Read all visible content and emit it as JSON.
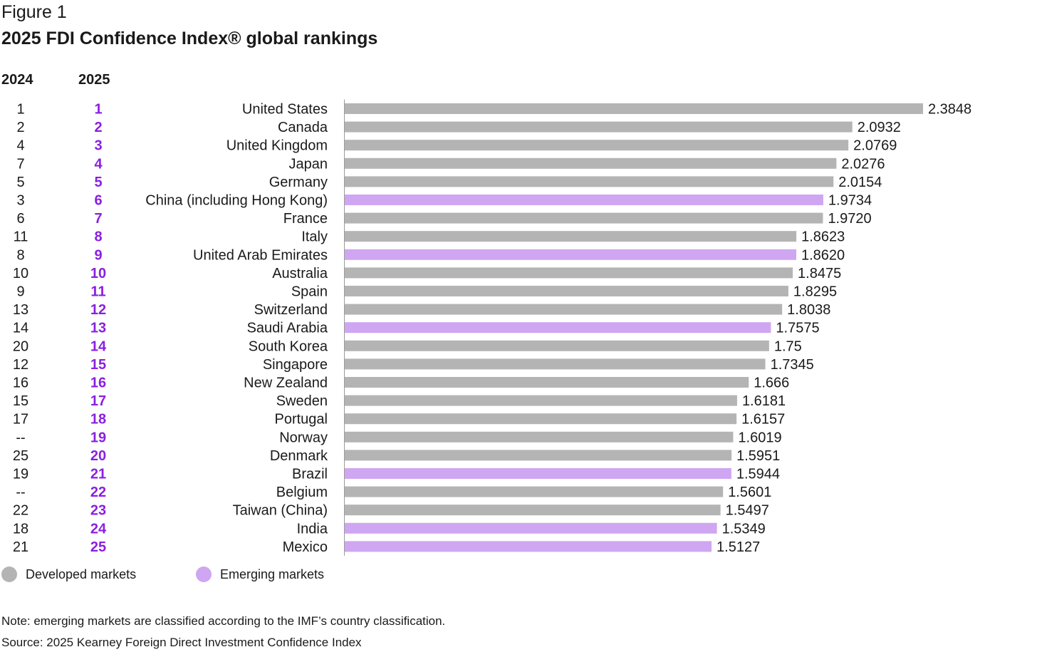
{
  "header": {
    "figure_label": "Figure 1",
    "title": "2025 FDI Confidence Index® global rankings",
    "col_2024": "2024",
    "col_2025": "2025"
  },
  "legend": {
    "developed": "Developed markets",
    "emerging": "Emerging markets"
  },
  "colors": {
    "developed": "#b4b4b4",
    "emerging": "#cfa6f2",
    "rank_2025": "#8a1fe0",
    "text": "#1a1a1a"
  },
  "footer": {
    "note": "Note: emerging markets are classified according to the IMF’s country classification.",
    "source": "Source: 2025 Kearney Foreign Direct Investment Confidence Index"
  },
  "chart_data": {
    "type": "bar",
    "orientation": "horizontal",
    "title": "2025 FDI Confidence Index® global rankings",
    "xlim": [
      0,
      2.3848
    ],
    "categories": [
      "United States",
      "Canada",
      "United Kingdom",
      "Japan",
      "Germany",
      "China (including Hong Kong)",
      "France",
      "Italy",
      "United Arab Emirates",
      "Australia",
      "Spain",
      "Switzerland",
      "Saudi Arabia",
      "South Korea",
      "Singapore",
      "New Zealand",
      "Sweden",
      "Portugal",
      "Norway",
      "Denmark",
      "Brazil",
      "Belgium",
      "Taiwan (China)",
      "India",
      "Mexico"
    ],
    "values": [
      2.3848,
      2.0932,
      2.0769,
      2.0276,
      2.0154,
      1.9734,
      1.972,
      1.8623,
      1.862,
      1.8475,
      1.8295,
      1.8038,
      1.7575,
      1.75,
      1.7345,
      1.666,
      1.6181,
      1.6157,
      1.6019,
      1.5951,
      1.5944,
      1.5601,
      1.5497,
      1.5349,
      1.5127
    ],
    "value_labels": [
      "2.3848",
      "2.0932",
      "2.0769",
      "2.0276",
      "2.0154",
      "1.9734",
      "1.9720",
      "1.8623",
      "1.8620",
      "1.8475",
      "1.8295",
      "1.8038",
      "1.7575",
      "1.75",
      "1.7345",
      "1.666",
      "1.6181",
      "1.6157",
      "1.6019",
      "1.5951",
      "1.5944",
      "1.5601",
      "1.5497",
      "1.5349",
      "1.5127"
    ],
    "market": [
      "developed",
      "developed",
      "developed",
      "developed",
      "developed",
      "emerging",
      "developed",
      "developed",
      "emerging",
      "developed",
      "developed",
      "developed",
      "emerging",
      "developed",
      "developed",
      "developed",
      "developed",
      "developed",
      "developed",
      "developed",
      "emerging",
      "developed",
      "developed",
      "emerging",
      "emerging"
    ],
    "rank_2024": [
      "1",
      "2",
      "4",
      "7",
      "5",
      "3",
      "6",
      "11",
      "8",
      "10",
      "9",
      "13",
      "14",
      "20",
      "12",
      "16",
      "15",
      "17",
      "--",
      "25",
      "19",
      "--",
      "22",
      "18",
      "21"
    ],
    "rank_2025": [
      "1",
      "2",
      "3",
      "4",
      "5",
      "6",
      "7",
      "8",
      "9",
      "10",
      "11",
      "12",
      "13",
      "14",
      "15",
      "16",
      "17",
      "18",
      "19",
      "20",
      "21",
      "22",
      "23",
      "24",
      "25"
    ],
    "legend": [
      "Developed markets",
      "Emerging markets"
    ],
    "legend_position": "bottom-left",
    "grid": false
  }
}
